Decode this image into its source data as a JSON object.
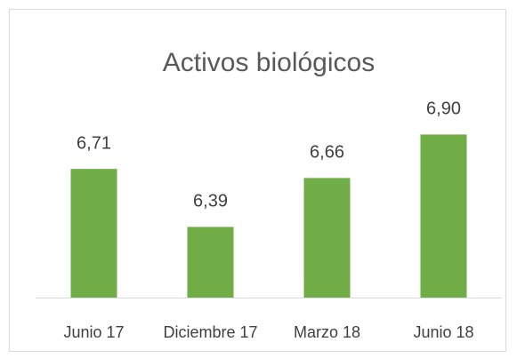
{
  "chart_data": {
    "type": "bar",
    "title": "Activos biológicos",
    "categories": [
      "Junio 17",
      "Diciembre 17",
      "Marzo 18",
      "Junio 18"
    ],
    "values": [
      6.71,
      6.39,
      6.66,
      6.9
    ],
    "value_labels": [
      "6,71",
      "6,39",
      "6,66",
      "6,90"
    ],
    "color": "#70ad47",
    "ylim": [
      6.0,
      7.0
    ]
  }
}
